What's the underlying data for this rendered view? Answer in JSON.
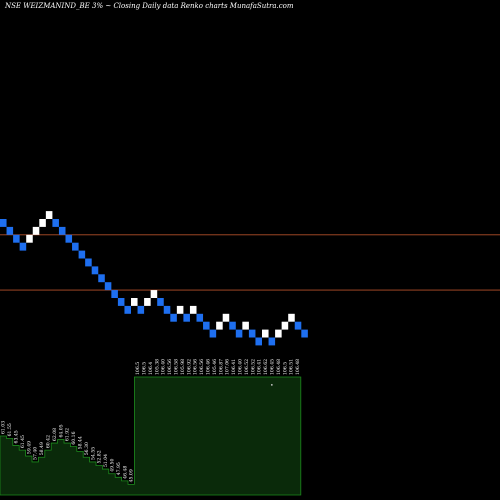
{
  "chart_data": {
    "type": "renko",
    "title": "NSE WEIZMANIND_BE 3% ~ Closing Daily data Renko charts MunafaSutra.com",
    "box_size_percent": 3,
    "colors": {
      "background": "#000000",
      "up_brick": "#ffffff",
      "down_brick": "#1e6ff0",
      "reference_line": "#b4502a",
      "volume_fill": "#0a2a0a",
      "volume_stroke": "#1c8a1c"
    },
    "bricks": [
      {
        "level": 0,
        "dir": "down"
      },
      {
        "level": -1,
        "dir": "down"
      },
      {
        "level": -2,
        "dir": "down"
      },
      {
        "level": -3,
        "dir": "down"
      },
      {
        "level": -2,
        "dir": "up"
      },
      {
        "level": -1,
        "dir": "up"
      },
      {
        "level": 0,
        "dir": "up"
      },
      {
        "level": 1,
        "dir": "up"
      },
      {
        "level": 0,
        "dir": "down"
      },
      {
        "level": -1,
        "dir": "down"
      },
      {
        "level": -2,
        "dir": "down"
      },
      {
        "level": -3,
        "dir": "down"
      },
      {
        "level": -4,
        "dir": "down"
      },
      {
        "level": -5,
        "dir": "down"
      },
      {
        "level": -6,
        "dir": "down"
      },
      {
        "level": -7,
        "dir": "down"
      },
      {
        "level": -8,
        "dir": "down"
      },
      {
        "level": -9,
        "dir": "down"
      },
      {
        "level": -10,
        "dir": "down"
      },
      {
        "level": -11,
        "dir": "down"
      },
      {
        "level": -10,
        "dir": "up"
      },
      {
        "level": -11,
        "dir": "down"
      },
      {
        "level": -10,
        "dir": "up"
      },
      {
        "level": -9,
        "dir": "up"
      },
      {
        "level": -10,
        "dir": "down"
      },
      {
        "level": -11,
        "dir": "down"
      },
      {
        "level": -12,
        "dir": "down"
      },
      {
        "level": -11,
        "dir": "up"
      },
      {
        "level": -12,
        "dir": "down"
      },
      {
        "level": -11,
        "dir": "up"
      },
      {
        "level": -12,
        "dir": "down"
      },
      {
        "level": -13,
        "dir": "down"
      },
      {
        "level": -14,
        "dir": "down"
      },
      {
        "level": -13,
        "dir": "up"
      },
      {
        "level": -12,
        "dir": "up"
      },
      {
        "level": -13,
        "dir": "down"
      },
      {
        "level": -14,
        "dir": "down"
      },
      {
        "level": -13,
        "dir": "up"
      },
      {
        "level": -14,
        "dir": "down"
      },
      {
        "level": -15,
        "dir": "down"
      },
      {
        "level": -14,
        "dir": "up"
      },
      {
        "level": -15,
        "dir": "down"
      },
      {
        "level": -14,
        "dir": "up"
      },
      {
        "level": -13,
        "dir": "up"
      },
      {
        "level": -12,
        "dir": "up"
      },
      {
        "level": -13,
        "dir": "down"
      },
      {
        "level": -14,
        "dir": "down"
      }
    ],
    "reference_lines": [
      {
        "level": -1
      },
      {
        "level": -8
      }
    ],
    "small_marker": {
      "brick_index": 41,
      "level": -21
    },
    "volume": [
      {
        "label": "61.03",
        "value": 0.5
      },
      {
        "label": "61.55",
        "value": 0.48
      },
      {
        "label": "63.45",
        "value": 0.42
      },
      {
        "label": "61.45",
        "value": 0.38
      },
      {
        "label": "59.49",
        "value": 0.33
      },
      {
        "label": "57.40",
        "value": 0.28
      },
      {
        "label": "58.49",
        "value": 0.32
      },
      {
        "label": "60.42",
        "value": 0.38
      },
      {
        "label": "62.08",
        "value": 0.44
      },
      {
        "label": "64.05",
        "value": 0.47
      },
      {
        "label": "61.92",
        "value": 0.44
      },
      {
        "label": "60.16",
        "value": 0.41
      },
      {
        "label": "58.44",
        "value": 0.37
      },
      {
        "label": "56.30",
        "value": 0.32
      },
      {
        "label": "54.55",
        "value": 0.28
      },
      {
        "label": "52.82",
        "value": 0.25
      },
      {
        "label": "51.04",
        "value": 0.22
      },
      {
        "label": "49.50",
        "value": 0.18
      },
      {
        "label": "47.95",
        "value": 0.15
      },
      {
        "label": "46.48",
        "value": 0.12
      },
      {
        "label": "45.09",
        "value": 0.09
      },
      {
        "label": "106.5",
        "value": 1.0
      },
      {
        "label": "106.5",
        "value": 1.0
      },
      {
        "label": "106.4",
        "value": 1.0
      },
      {
        "label": "105.38",
        "value": 1.0
      },
      {
        "label": "106.40",
        "value": 1.0
      },
      {
        "label": "106.56",
        "value": 1.0
      },
      {
        "label": "106.58",
        "value": 1.0
      },
      {
        "label": "105.98",
        "value": 1.0
      },
      {
        "label": "106.92",
        "value": 1.0
      },
      {
        "label": "106.56",
        "value": 1.0
      },
      {
        "label": "106.56",
        "value": 1.0
      },
      {
        "label": "106.46",
        "value": 1.0
      },
      {
        "label": "105.46",
        "value": 1.0
      },
      {
        "label": "106.87",
        "value": 1.0
      },
      {
        "label": "107.06",
        "value": 1.0
      },
      {
        "label": "106.41",
        "value": 1.0
      },
      {
        "label": "106.40",
        "value": 1.0
      },
      {
        "label": "106.52",
        "value": 1.0
      },
      {
        "label": "106.52",
        "value": 1.0
      },
      {
        "label": "106.41",
        "value": 1.0
      },
      {
        "label": "106.62",
        "value": 1.0
      },
      {
        "label": "106.45",
        "value": 1.0
      },
      {
        "label": "106.48",
        "value": 1.0
      },
      {
        "label": "106.5",
        "value": 1.0
      },
      {
        "label": "106.51",
        "value": 1.0
      },
      {
        "label": "106.48",
        "value": 1.0
      }
    ]
  }
}
